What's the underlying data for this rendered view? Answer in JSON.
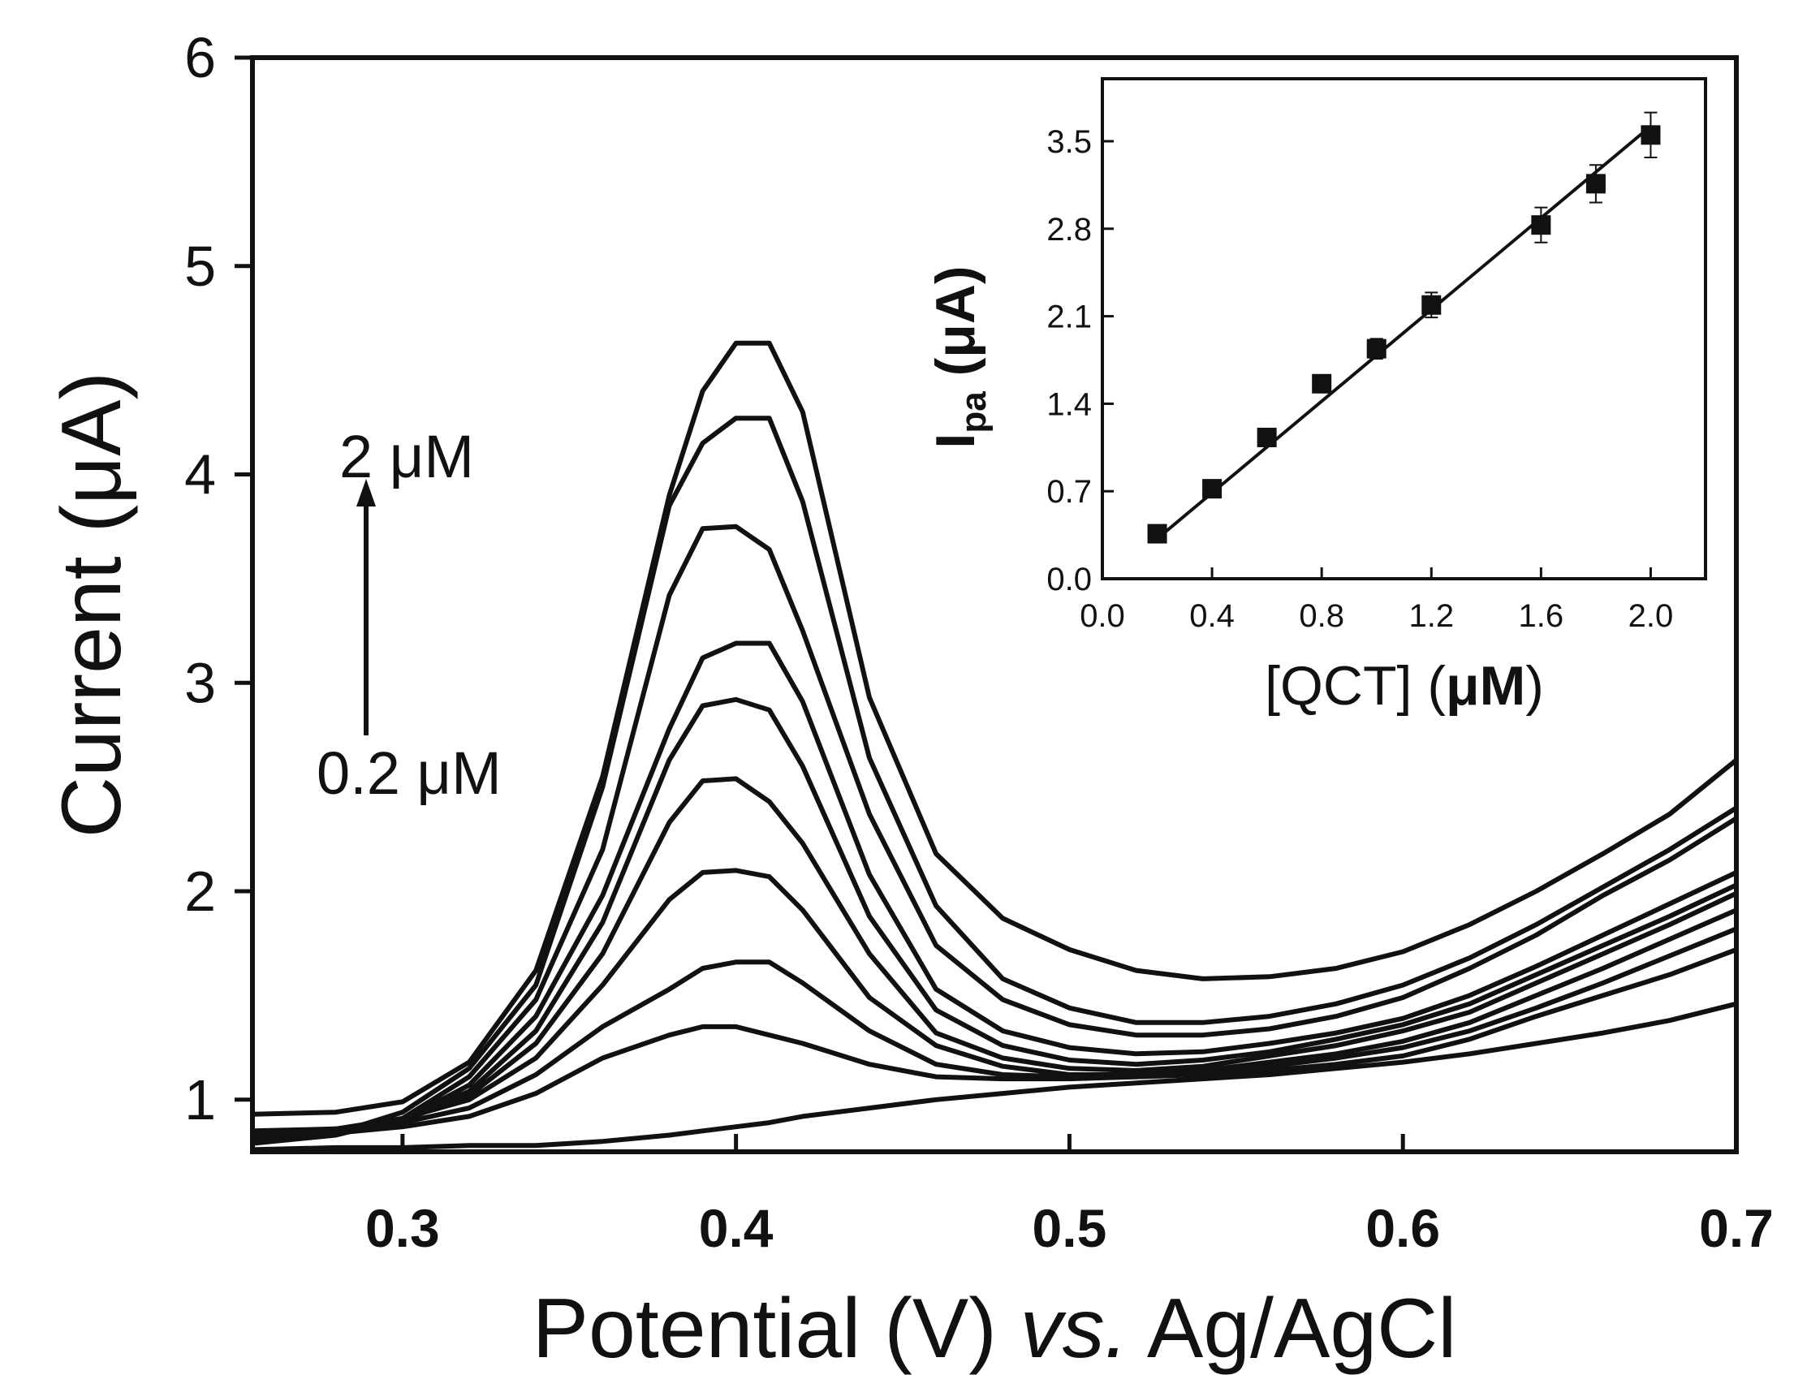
{
  "chart_data": [
    {
      "type": "line",
      "xlabel": "Potential (V) vs. Ag/AgCl",
      "xlabel_parts": {
        "pre": "Potential (V) ",
        "italic": "vs.",
        "post": " Ag/AgCl"
      },
      "ylabel": "Current (μA)",
      "xlim": [
        0.255,
        0.7
      ],
      "ylim": [
        0.75,
        6.0
      ],
      "xticks": [
        0.3,
        0.4,
        0.5,
        0.6,
        0.7
      ],
      "xtick_labels": [
        "0.3",
        "0.4",
        "0.5",
        "0.6",
        "0.7"
      ],
      "yticks": [
        1,
        2,
        3,
        4,
        5,
        6
      ],
      "ytick_labels": [
        "1",
        "2",
        "3",
        "4",
        "5",
        "6"
      ],
      "grid": false,
      "annotations": {
        "arrow_from_label": "0.2 μM",
        "arrow_to_label": "2 μM"
      },
      "x": [
        0.255,
        0.28,
        0.3,
        0.32,
        0.34,
        0.36,
        0.38,
        0.39,
        0.4,
        0.41,
        0.42,
        0.44,
        0.46,
        0.48,
        0.5,
        0.52,
        0.54,
        0.56,
        0.58,
        0.6,
        0.62,
        0.64,
        0.66,
        0.68,
        0.7
      ],
      "series": [
        {
          "values": [
            0.76,
            0.77,
            0.77,
            0.78,
            0.78,
            0.8,
            0.83,
            0.85,
            0.87,
            0.89,
            0.92,
            0.96,
            1.0,
            1.03,
            1.06,
            1.08,
            1.1,
            1.12,
            1.15,
            1.18,
            1.22,
            1.27,
            1.32,
            1.38,
            1.46
          ]
        },
        {
          "values": [
            0.82,
            0.84,
            0.87,
            0.92,
            1.03,
            1.2,
            1.31,
            1.35,
            1.35,
            1.31,
            1.27,
            1.17,
            1.11,
            1.1,
            1.1,
            1.11,
            1.12,
            1.14,
            1.17,
            1.21,
            1.29,
            1.4,
            1.5,
            1.6,
            1.72
          ]
        },
        {
          "values": [
            0.84,
            0.86,
            0.89,
            0.96,
            1.12,
            1.35,
            1.53,
            1.63,
            1.66,
            1.66,
            1.56,
            1.33,
            1.17,
            1.12,
            1.11,
            1.11,
            1.13,
            1.16,
            1.2,
            1.25,
            1.33,
            1.44,
            1.56,
            1.69,
            1.82
          ]
        },
        {
          "values": [
            0.85,
            0.86,
            0.91,
            1.0,
            1.2,
            1.55,
            1.96,
            2.09,
            2.1,
            2.07,
            1.91,
            1.49,
            1.26,
            1.16,
            1.12,
            1.12,
            1.14,
            1.18,
            1.22,
            1.28,
            1.37,
            1.5,
            1.63,
            1.77,
            1.91
          ]
        },
        {
          "values": [
            0.82,
            0.85,
            0.9,
            1.02,
            1.27,
            1.7,
            2.33,
            2.53,
            2.54,
            2.43,
            2.23,
            1.7,
            1.32,
            1.2,
            1.15,
            1.14,
            1.16,
            1.21,
            1.26,
            1.33,
            1.42,
            1.56,
            1.7,
            1.84,
            1.99
          ]
        },
        {
          "values": [
            0.81,
            0.84,
            0.9,
            1.04,
            1.33,
            1.85,
            2.63,
            2.89,
            2.92,
            2.87,
            2.6,
            1.88,
            1.43,
            1.26,
            1.19,
            1.17,
            1.19,
            1.23,
            1.29,
            1.36,
            1.46,
            1.6,
            1.74,
            1.88,
            2.03
          ]
        },
        {
          "values": [
            0.8,
            0.84,
            0.9,
            1.07,
            1.4,
            1.98,
            2.78,
            3.12,
            3.19,
            3.19,
            2.91,
            2.08,
            1.53,
            1.33,
            1.25,
            1.22,
            1.23,
            1.27,
            1.32,
            1.39,
            1.5,
            1.64,
            1.79,
            1.94,
            2.09
          ]
        },
        {
          "values": [
            0.79,
            0.83,
            0.91,
            1.11,
            1.48,
            2.2,
            3.42,
            3.74,
            3.75,
            3.64,
            3.25,
            2.37,
            1.74,
            1.48,
            1.36,
            1.31,
            1.31,
            1.34,
            1.4,
            1.49,
            1.63,
            1.79,
            1.98,
            2.15,
            2.35
          ]
        },
        {
          "values": [
            0.8,
            0.84,
            0.94,
            1.15,
            1.55,
            2.5,
            3.85,
            4.15,
            4.27,
            4.27,
            3.87,
            2.64,
            1.93,
            1.58,
            1.44,
            1.37,
            1.37,
            1.4,
            1.46,
            1.55,
            1.68,
            1.84,
            2.02,
            2.2,
            2.4
          ]
        },
        {
          "values": [
            0.93,
            0.94,
            0.99,
            1.18,
            1.62,
            2.55,
            3.9,
            4.4,
            4.63,
            4.63,
            4.3,
            2.93,
            2.18,
            1.87,
            1.72,
            1.62,
            1.58,
            1.59,
            1.63,
            1.71,
            1.84,
            2.0,
            2.18,
            2.37,
            2.63
          ]
        }
      ]
    },
    {
      "type": "scatter",
      "ylabel": "I",
      "ylabel_sub": "pa",
      "ylabel_unit": " (μA)",
      "xlabel": "[QCT] (μM)",
      "xlabel_parts": {
        "pre": "[QCT] (",
        "bold": "μM",
        "post": ")"
      },
      "xlim": [
        0.0,
        2.2
      ],
      "ylim": [
        0.0,
        4.0
      ],
      "xticks": [
        0.0,
        0.4,
        0.8,
        1.2,
        1.6,
        2.0
      ],
      "xtick_labels": [
        "0.0",
        "0.4",
        "0.8",
        "1.2",
        "1.6",
        "2.0"
      ],
      "yticks": [
        0.0,
        0.7,
        1.4,
        2.1,
        2.8,
        3.5
      ],
      "ytick_labels": [
        "0.0",
        "0.7",
        "1.4",
        "2.1",
        "2.8",
        "3.5"
      ],
      "points": {
        "x": [
          0.2,
          0.4,
          0.6,
          0.8,
          1.0,
          1.2,
          1.6,
          1.8,
          2.0
        ],
        "y": [
          0.36,
          0.72,
          1.13,
          1.56,
          1.84,
          2.19,
          2.83,
          3.16,
          3.55
        ],
        "error": [
          0.03,
          0.04,
          0.05,
          0.05,
          0.08,
          0.1,
          0.14,
          0.15,
          0.18
        ]
      },
      "fit": {
        "x": [
          0.2,
          2.0
        ],
        "y": [
          0.32,
          3.62
        ]
      },
      "grid": false
    }
  ]
}
